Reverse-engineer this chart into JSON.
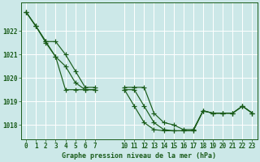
{
  "title": "Graphe pression niveau de la mer (hPa)",
  "bg_color": "#cce8e8",
  "grid_color": "#ffffff",
  "line_color": "#1a5c1a",
  "ylim": [
    1017.4,
    1023.2
  ],
  "yticks": [
    1018,
    1019,
    1020,
    1021,
    1022
  ],
  "xlim": [
    -0.5,
    23.5
  ],
  "xtick_vals": [
    0,
    1,
    2,
    3,
    4,
    5,
    6,
    7,
    10,
    11,
    12,
    13,
    14,
    15,
    16,
    17,
    18,
    19,
    20,
    21,
    22,
    23
  ],
  "series": [
    {
      "x": [
        0,
        1,
        2,
        3,
        4,
        5,
        6,
        7
      ],
      "y": [
        1022.8,
        1022.2,
        1021.5,
        1020.9,
        1019.5,
        1019.5,
        1019.5,
        1019.5
      ]
    },
    {
      "x": [
        10,
        11,
        12,
        13,
        14,
        15,
        16,
        17,
        18,
        19,
        20,
        21,
        22,
        23
      ],
      "y": [
        1019.5,
        1019.5,
        1018.8,
        1018.1,
        1017.8,
        1017.75,
        1017.75,
        1017.75,
        1018.6,
        1018.5,
        1018.5,
        1018.5,
        1018.8,
        1018.5
      ]
    },
    {
      "x": [
        0,
        1,
        2,
        3,
        4,
        5,
        6,
        7
      ],
      "y": [
        1022.8,
        1022.2,
        1021.55,
        1021.55,
        1021.0,
        1020.3,
        1019.6,
        1019.6
      ]
    },
    {
      "x": [
        10,
        11,
        12,
        13,
        14,
        15,
        16,
        17,
        18,
        19,
        20,
        21,
        22,
        23
      ],
      "y": [
        1019.6,
        1019.6,
        1019.6,
        1018.5,
        1018.1,
        1018.0,
        1017.8,
        1017.8,
        1018.6,
        1018.5,
        1018.5,
        1018.5,
        1018.8,
        1018.5
      ]
    },
    {
      "x": [
        0,
        1,
        2,
        3,
        4,
        5,
        6,
        7
      ],
      "y": [
        1022.8,
        1022.2,
        1021.55,
        1020.9,
        1020.5,
        1019.8,
        1019.5,
        1019.5
      ]
    },
    {
      "x": [
        10,
        11,
        12,
        13,
        14,
        15,
        16,
        17,
        18,
        19,
        20,
        21,
        22,
        23
      ],
      "y": [
        1019.5,
        1018.8,
        1018.1,
        1017.8,
        1017.75,
        1017.75,
        1017.75,
        1017.75,
        1018.6,
        1018.5,
        1018.5,
        1018.5,
        1018.8,
        1018.5
      ]
    }
  ],
  "title_fontsize": 6.0,
  "tick_fontsize": 5.5
}
